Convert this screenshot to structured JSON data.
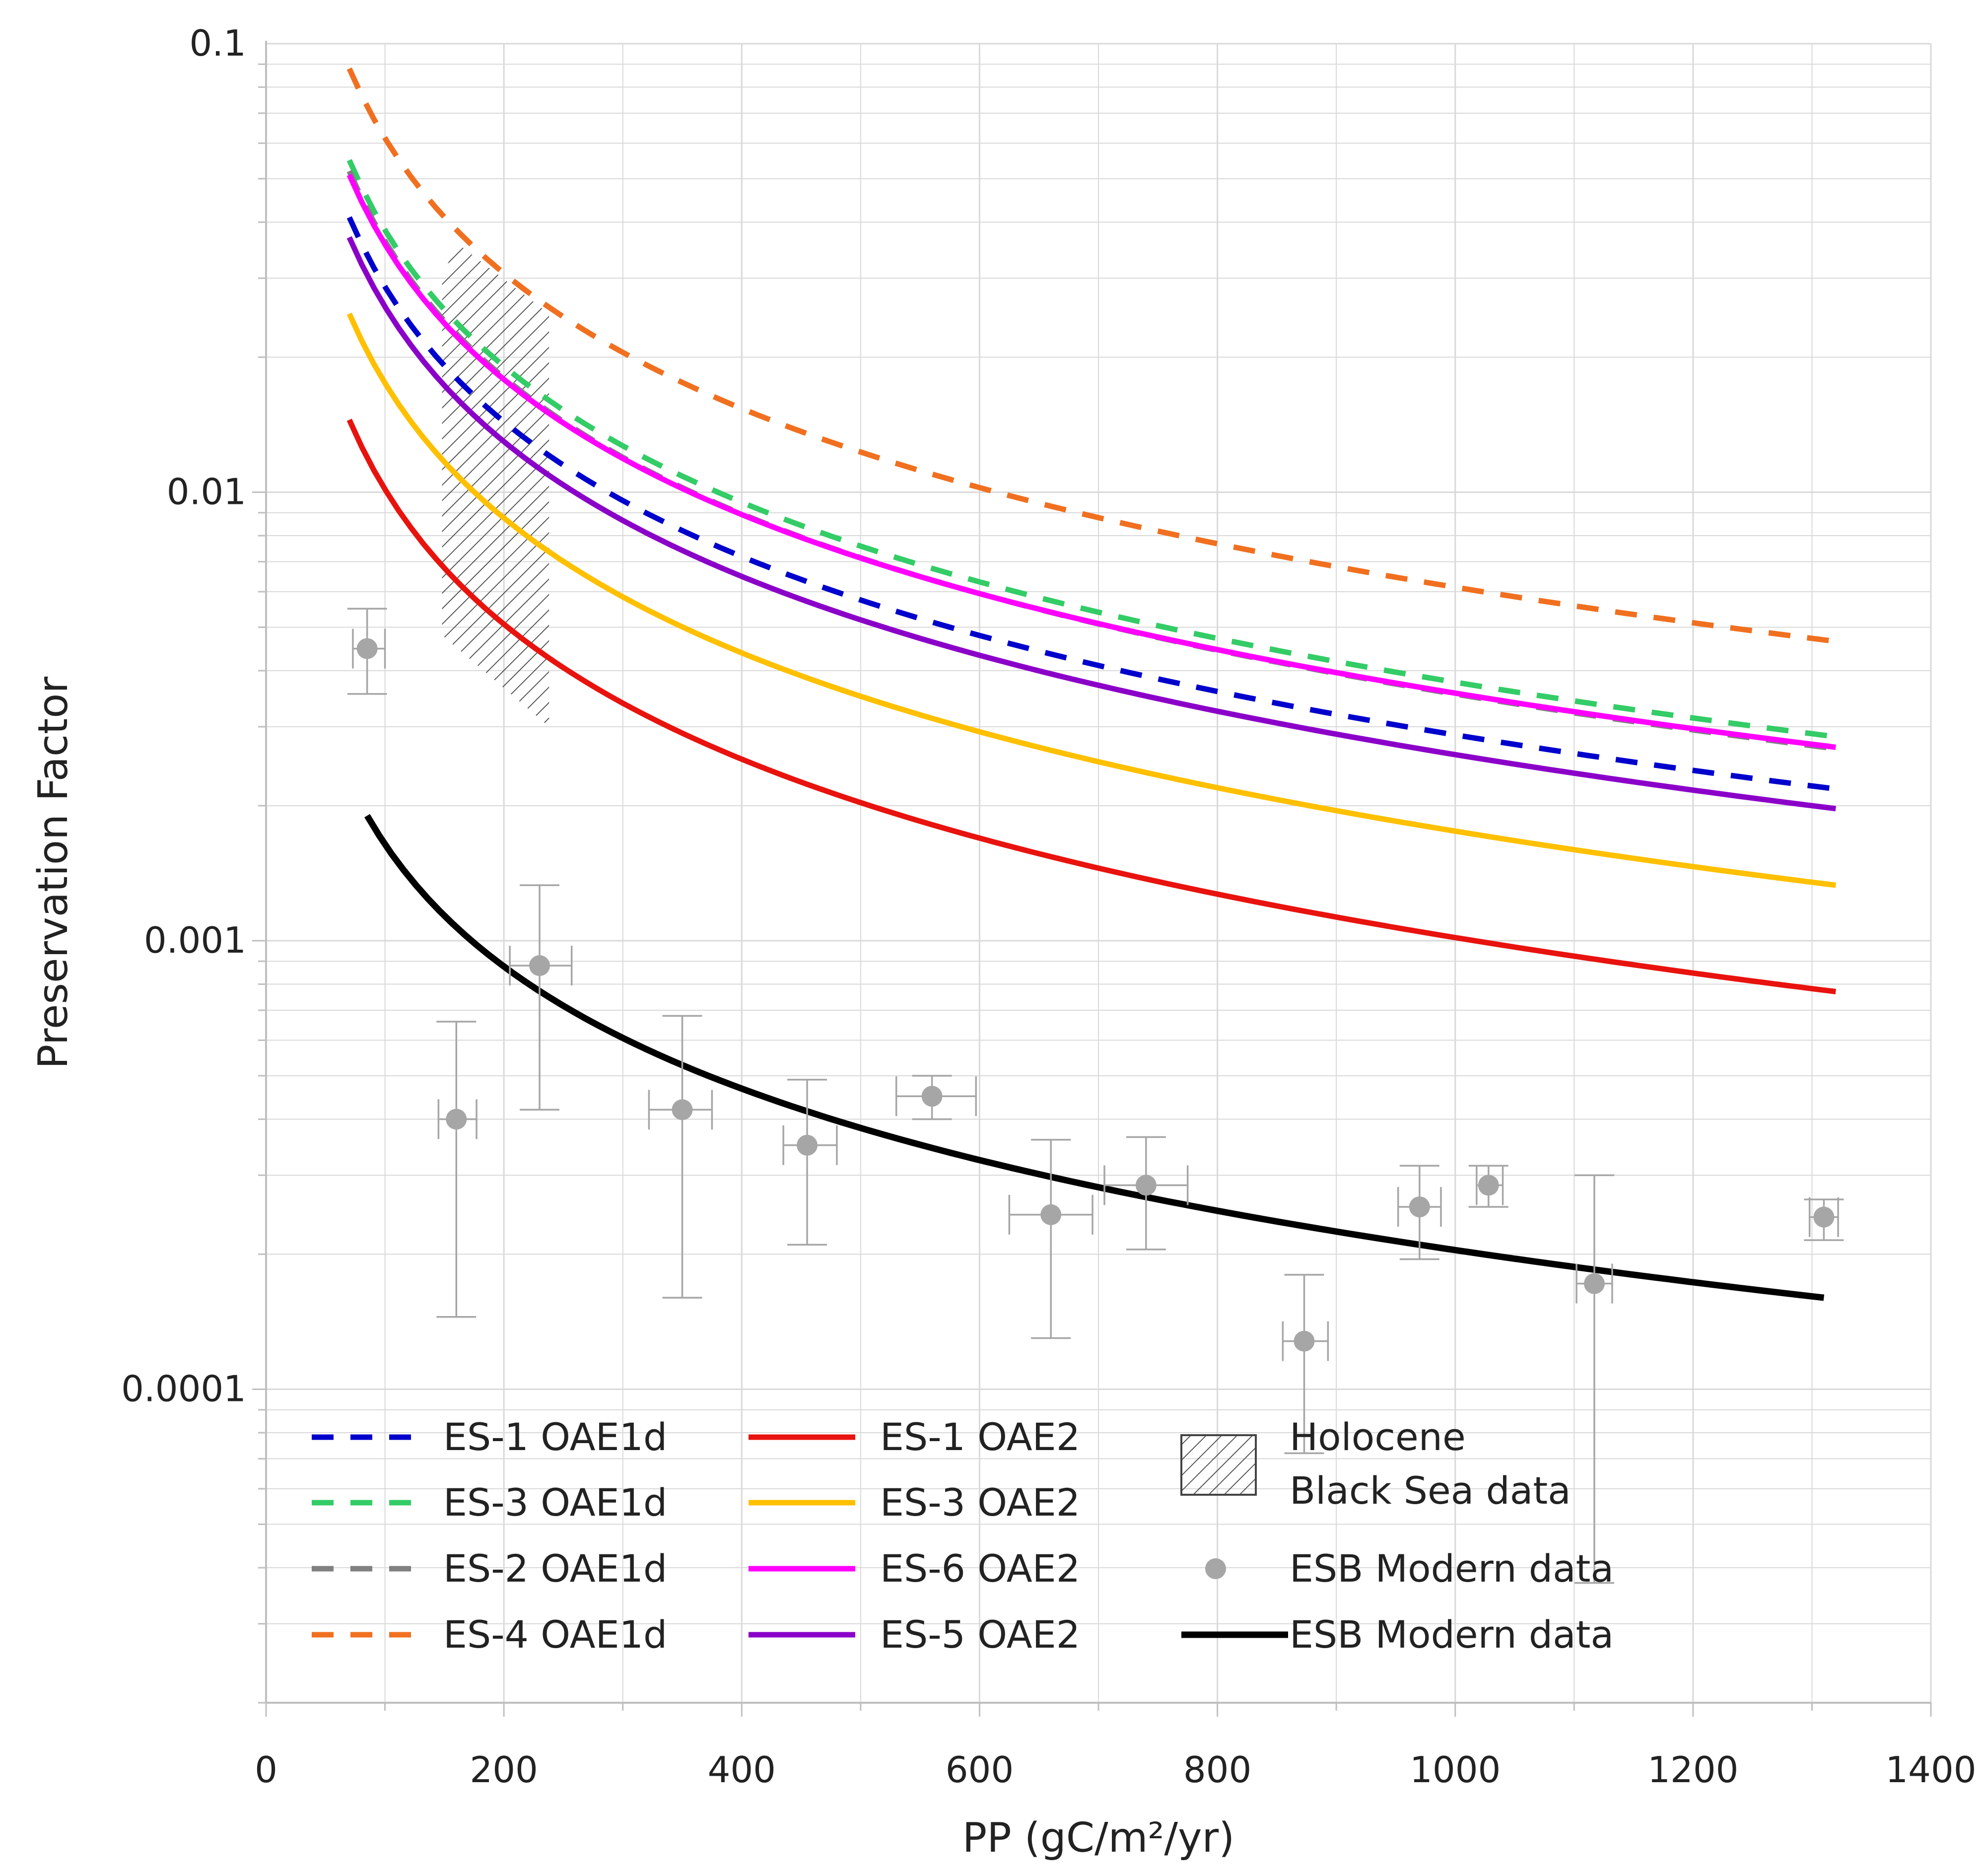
{
  "colors": {
    "background": "#ffffff",
    "grid": "#d9d9d9",
    "axis": "#bfbfbf",
    "text": "#222222",
    "error_bar": "#a6a6a6",
    "data_point": "#a6a6a6"
  },
  "chart_data": {
    "type": "line",
    "xlabel": "PP (gC/m²/yr)",
    "ylabel": "Preservation Factor",
    "xlim": [
      0,
      1400
    ],
    "ylim": [
      2e-05,
      0.1
    ],
    "yscale": "log",
    "grid": true,
    "x_ticks": [
      0,
      200,
      400,
      600,
      800,
      1000,
      1200,
      1400
    ],
    "x_tick_labels": [
      "0",
      "200",
      "400",
      "600",
      "800",
      "1000",
      "1200",
      "1400"
    ],
    "y_ticks": [
      0.0001,
      0.001,
      0.01,
      0.1
    ],
    "y_tick_labels": [
      "0.0001",
      "0.001",
      "0.01",
      "0.1"
    ],
    "legend_position": "bottom-left",
    "series": [
      {
        "name": "ES-1 OAE1d",
        "color": "#0000cc",
        "style": "dashed",
        "x": [
          70,
          1320
        ],
        "y": [
          0.041,
          0.00218
        ]
      },
      {
        "name": "ES-3 OAE1d",
        "color": "#33cc66",
        "style": "dashed",
        "x": [
          70,
          1320
        ],
        "y": [
          0.055,
          0.00285
        ]
      },
      {
        "name": "ES-2 OAE1d",
        "color": "#808080",
        "style": "dashed",
        "x": [
          70,
          1320
        ],
        "y": [
          0.052,
          0.00268
        ]
      },
      {
        "name": "ES-4 OAE1d",
        "color": "#f07020",
        "style": "dashed",
        "x": [
          70,
          1320
        ],
        "y": [
          0.088,
          0.00465
        ]
      },
      {
        "name": "ES-1 OAE2",
        "color": "#e8130e",
        "style": "solid",
        "x": [
          70,
          1320
        ],
        "y": [
          0.0145,
          0.00077
        ]
      },
      {
        "name": "ES-3 OAE2",
        "color": "#ffc000",
        "style": "solid",
        "x": [
          70,
          1320
        ],
        "y": [
          0.025,
          0.00133
        ]
      },
      {
        "name": "ES-6 OAE2",
        "color": "#ff00ff",
        "style": "solid",
        "x": [
          70,
          1320
        ],
        "y": [
          0.051,
          0.0027
        ]
      },
      {
        "name": "ES-5 OAE2",
        "color": "#8b00c8",
        "style": "solid",
        "x": [
          70,
          1320
        ],
        "y": [
          0.037,
          0.00197
        ]
      },
      {
        "name": "ESB Modern data",
        "color": "#000000",
        "style": "solid-thick",
        "x": [
          85,
          1310
        ],
        "y": [
          0.0019,
          0.00016
        ]
      }
    ],
    "hatched_region": {
      "name": "Holocene Black Sea data",
      "x_range": [
        148,
        238
      ],
      "polygon": [
        [
          148,
          0.03
        ],
        [
          160,
          0.036
        ],
        [
          238,
          0.025
        ],
        [
          238,
          0.003
        ],
        [
          148,
          0.0048
        ]
      ]
    },
    "scatter": {
      "name": "ESB Modern data",
      "points": [
        {
          "x": 85,
          "y": 0.00448,
          "xerr": [
            12,
            15
          ],
          "yerr": [
            0.00355,
            0.0055
          ]
        },
        {
          "x": 160,
          "y": 0.0004,
          "xerr": [
            15,
            17
          ],
          "yerr": [
            0.000145,
            0.00066
          ]
        },
        {
          "x": 230,
          "y": 0.00088,
          "xerr": [
            25,
            27
          ],
          "yerr": [
            0.00042,
            0.00133
          ]
        },
        {
          "x": 350,
          "y": 0.00042,
          "xerr": [
            28,
            25
          ],
          "yerr": [
            0.00016,
            0.00068
          ]
        },
        {
          "x": 455,
          "y": 0.00035,
          "xerr": [
            20,
            25
          ],
          "yerr": [
            0.00021,
            0.00049
          ]
        },
        {
          "x": 560,
          "y": 0.00045,
          "xerr": [
            30,
            37
          ],
          "yerr": [
            0.0004,
            0.0005
          ]
        },
        {
          "x": 660,
          "y": 0.000245,
          "xerr": [
            35,
            35
          ],
          "yerr": [
            0.00013,
            0.00036
          ]
        },
        {
          "x": 740,
          "y": 0.000285,
          "xerr": [
            35,
            35
          ],
          "yerr": [
            0.000205,
            0.000365
          ]
        },
        {
          "x": 873,
          "y": 0.000128,
          "xerr": [
            18,
            20
          ],
          "yerr": [
            7.2e-05,
            0.00018
          ]
        },
        {
          "x": 970,
          "y": 0.000255,
          "xerr": [
            18,
            18
          ],
          "yerr": [
            0.000195,
            0.000315
          ]
        },
        {
          "x": 1028,
          "y": 0.000285,
          "xerr": [
            10,
            12
          ],
          "yerr": [
            0.000255,
            0.000315
          ]
        },
        {
          "x": 1117,
          "y": 0.000172,
          "xerr": [
            15,
            15
          ],
          "yerr": [
            3.7e-05,
            0.0003
          ]
        },
        {
          "x": 1310,
          "y": 0.000242,
          "xerr": [
            12,
            12
          ],
          "yerr": [
            0.000215,
            0.000265
          ]
        }
      ]
    },
    "legend": [
      {
        "label": "ES-1 OAE1d",
        "type": "line",
        "color": "#0000cc",
        "style": "dashed",
        "col": 0,
        "row": 0
      },
      {
        "label": "ES-3 OAE1d",
        "type": "line",
        "color": "#33cc66",
        "style": "dashed",
        "col": 0,
        "row": 1
      },
      {
        "label": "ES-2 OAE1d",
        "type": "line",
        "color": "#808080",
        "style": "dashed",
        "col": 0,
        "row": 2
      },
      {
        "label": "ES-4 OAE1d",
        "type": "line",
        "color": "#f07020",
        "style": "dashed",
        "col": 0,
        "row": 3
      },
      {
        "label": "ES-1 OAE2",
        "type": "line",
        "color": "#e8130e",
        "style": "solid",
        "col": 1,
        "row": 0
      },
      {
        "label": "ES-3 OAE2",
        "type": "line",
        "color": "#ffc000",
        "style": "solid",
        "col": 1,
        "row": 1
      },
      {
        "label": "ES-6 OAE2",
        "type": "line",
        "color": "#ff00ff",
        "style": "solid",
        "col": 1,
        "row": 2
      },
      {
        "label": "ES-5 OAE2",
        "type": "line",
        "color": "#8b00c8",
        "style": "solid",
        "col": 1,
        "row": 3
      },
      {
        "label": "Holocene",
        "label2": "Black Sea data",
        "type": "hatch",
        "color": "#444444",
        "col": 2,
        "row": 0
      },
      {
        "label": "ESB Modern data",
        "type": "marker",
        "color": "#a6a6a6",
        "col": 2,
        "row": 2
      },
      {
        "label": "ESB Modern data",
        "type": "line",
        "color": "#000000",
        "style": "solid-thick",
        "col": 2,
        "row": 3
      }
    ]
  }
}
